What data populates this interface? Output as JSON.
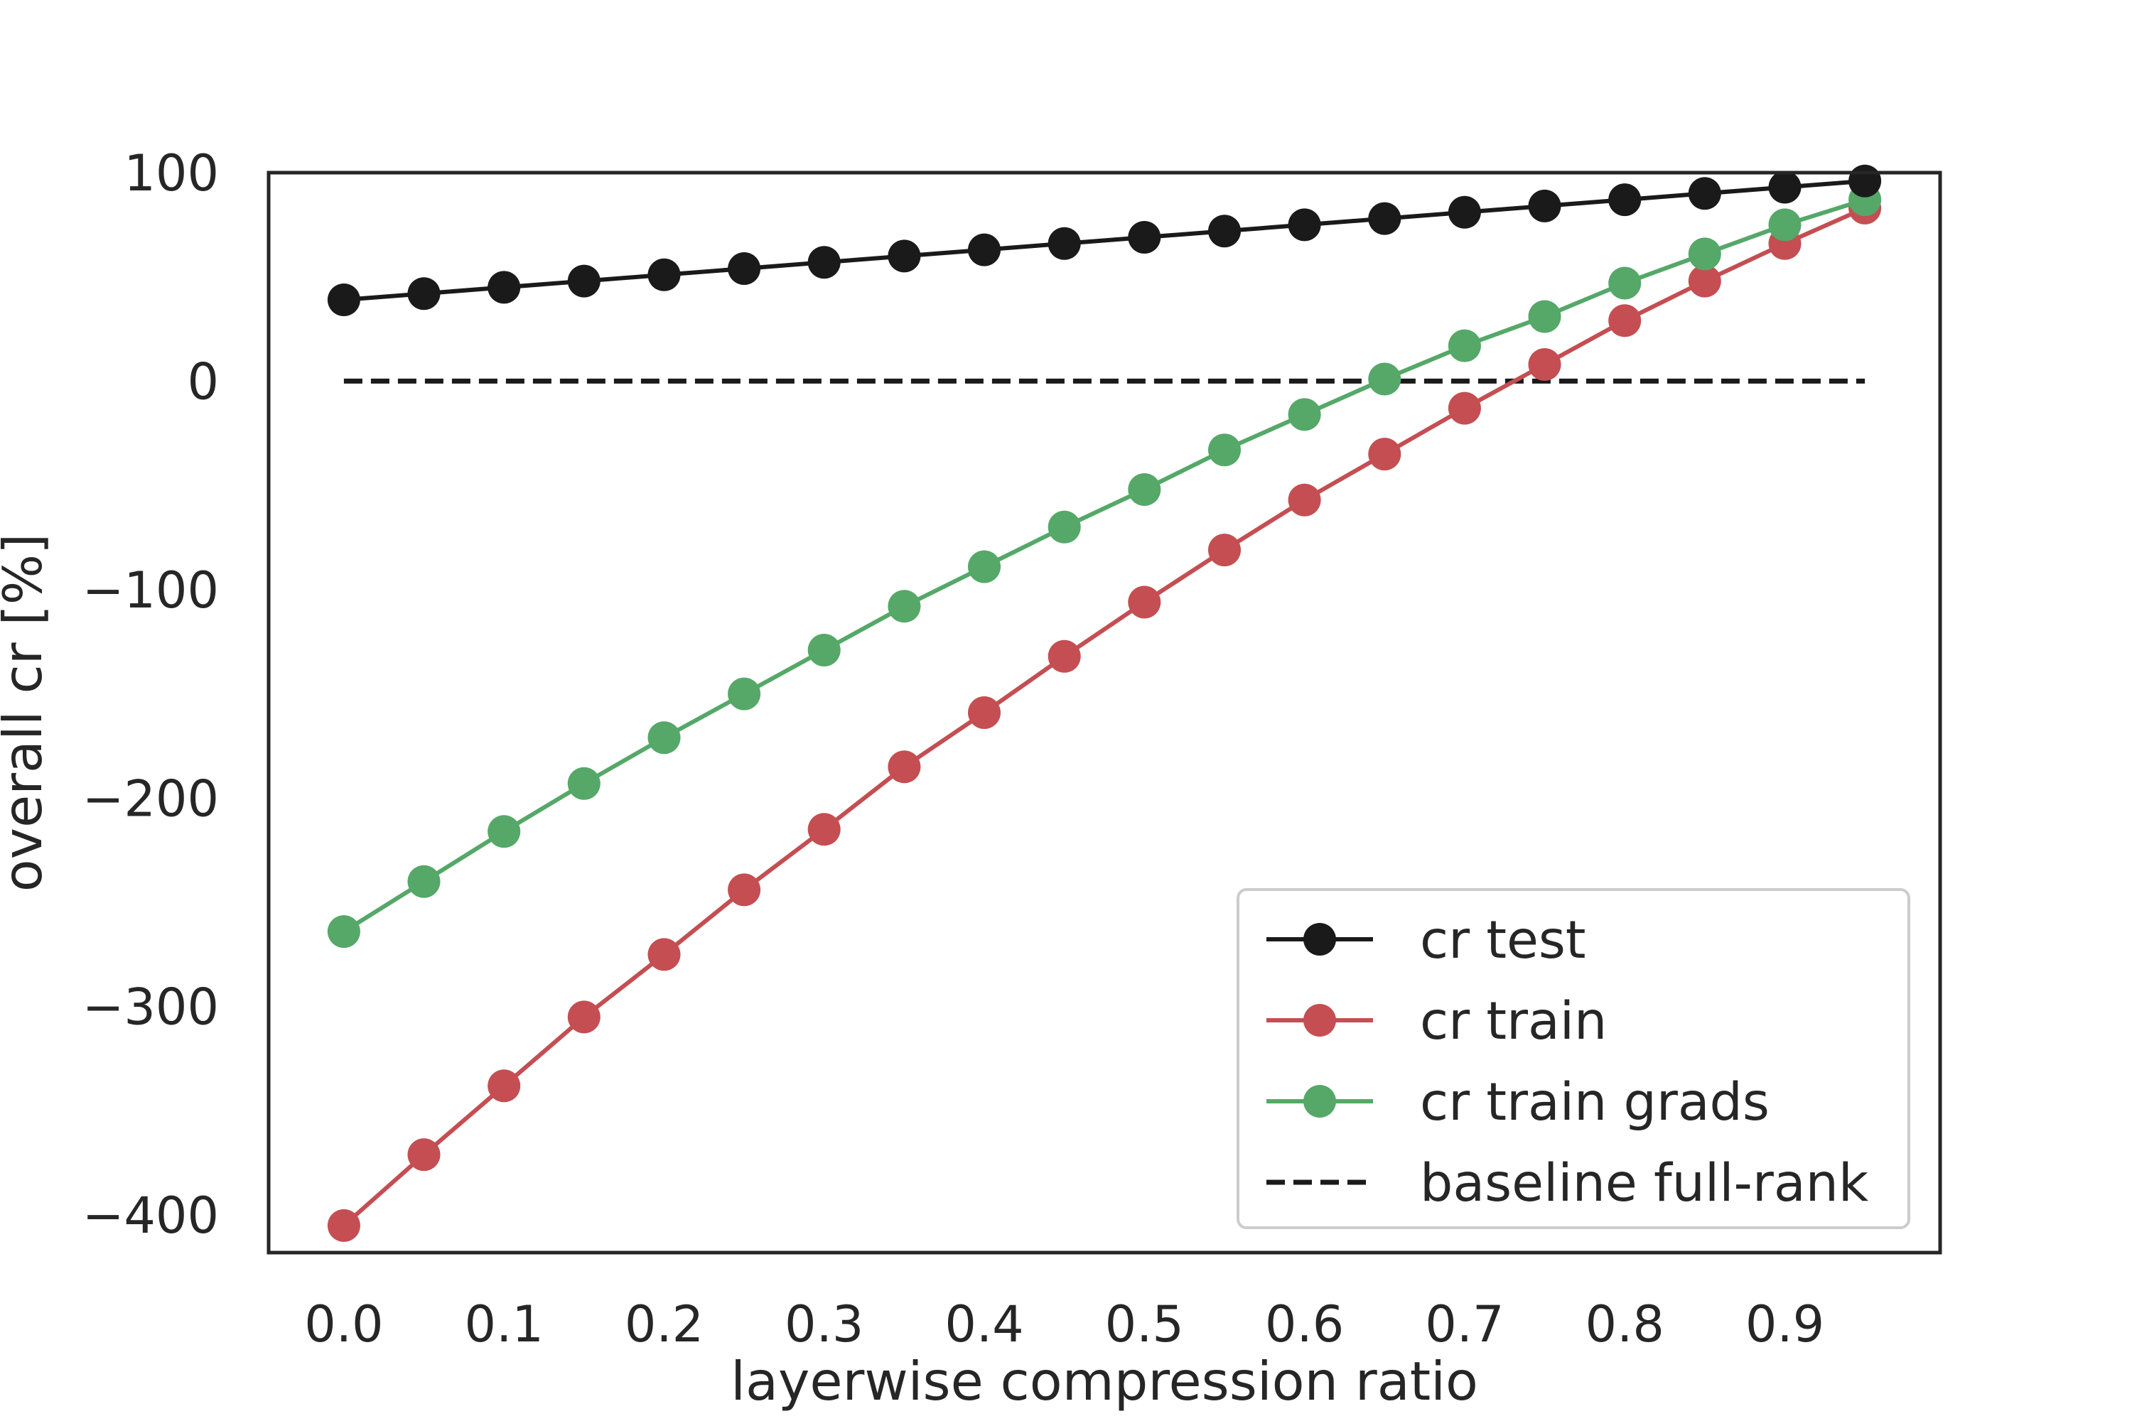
{
  "chart_data": {
    "type": "line",
    "title": "",
    "xlabel": "layerwise compression ratio",
    "ylabel": "overall cr [%]",
    "xlim": [
      -0.047,
      0.997
    ],
    "ylim": [
      -418,
      100
    ],
    "xticks": [
      0.0,
      0.1,
      0.2,
      0.3,
      0.4,
      0.5,
      0.6,
      0.7,
      0.8,
      0.9
    ],
    "xtick_labels": [
      "0.0",
      "0.1",
      "0.2",
      "0.3",
      "0.4",
      "0.5",
      "0.6",
      "0.7",
      "0.8",
      "0.9"
    ],
    "yticks": [
      100,
      0,
      -100,
      -200,
      -300,
      -400
    ],
    "ytick_labels": [
      "100",
      "0",
      "−100",
      "−200",
      "−300",
      "−400"
    ],
    "grid": false,
    "legend_position": "bottom-right",
    "x": [
      0.0,
      0.05,
      0.1,
      0.15,
      0.2,
      0.25,
      0.3,
      0.35,
      0.4,
      0.45,
      0.5,
      0.55,
      0.6,
      0.65,
      0.7,
      0.75,
      0.8,
      0.85,
      0.9,
      0.95
    ],
    "series": [
      {
        "name": "cr test",
        "color": "#1a1a1a",
        "marker": "circle",
        "line_style": "solid",
        "values": [
          39,
          42,
          45,
          48,
          51,
          54,
          57,
          60,
          63,
          66,
          69,
          72,
          75,
          78,
          81,
          84,
          87,
          90,
          93,
          96
        ]
      },
      {
        "name": "cr train",
        "color": "#c44e52",
        "marker": "circle",
        "line_style": "solid",
        "values": [
          -405,
          -371,
          -338,
          -305,
          -275,
          -244,
          -215,
          -185,
          -159,
          -132,
          -106,
          -81,
          -57,
          -35,
          -13,
          8,
          29,
          48,
          66,
          83
        ]
      },
      {
        "name": "cr train grads",
        "color": "#55a868",
        "marker": "circle",
        "line_style": "solid",
        "values": [
          -264,
          -240,
          -216,
          -193,
          -171,
          -150,
          -129,
          -108,
          -89,
          -70,
          -52,
          -33,
          -16,
          1,
          17,
          31,
          47,
          61,
          75,
          87
        ]
      },
      {
        "name": "baseline full-rank",
        "color": "#1a1a1a",
        "marker": "none",
        "line_style": "dashed",
        "values": [
          0,
          0,
          0,
          0,
          0,
          0,
          0,
          0,
          0,
          0,
          0,
          0,
          0,
          0,
          0,
          0,
          0,
          0,
          0,
          0
        ]
      }
    ]
  }
}
